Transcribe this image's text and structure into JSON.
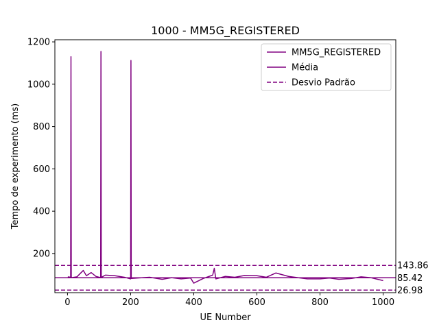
{
  "chart_data": {
    "type": "line",
    "title": "1000 - MM5G_REGISTERED",
    "xlabel": "UE Number",
    "ylabel": "Tempo de experimento (ms)",
    "xlim": [
      -40,
      1040
    ],
    "ylim": [
      15,
      1210
    ],
    "xticks": [
      0,
      200,
      400,
      600,
      800,
      1000
    ],
    "yticks": [
      200,
      400,
      600,
      800,
      1000,
      1200
    ],
    "grid": false,
    "legend_position": "top-right",
    "series_color": "#800080",
    "series": [
      {
        "name": "MM5G_REGISTERED",
        "style": "solid",
        "x": [
          1,
          10,
          11,
          12,
          13,
          30,
          50,
          60,
          75,
          90,
          105,
          106,
          107,
          108,
          120,
          150,
          180,
          200,
          201,
          202,
          203,
          230,
          260,
          300,
          330,
          360,
          390,
          400,
          430,
          460,
          465,
          470,
          500,
          530,
          560,
          600,
          630,
          660,
          700,
          730,
          760,
          800,
          830,
          860,
          900,
          930,
          960,
          1000
        ],
        "y": [
          90,
          88,
          1130,
          90,
          86,
          90,
          120,
          95,
          110,
          92,
          86,
          1155,
          92,
          88,
          98,
          95,
          88,
          80,
          1112,
          85,
          82,
          85,
          88,
          78,
          86,
          80,
          84,
          60,
          82,
          98,
          130,
          80,
          92,
          88,
          96,
          95,
          88,
          108,
          92,
          86,
          80,
          80,
          84,
          78,
          82,
          90,
          86,
          72
        ]
      },
      {
        "name": "Média",
        "style": "solid",
        "value": 85.42
      },
      {
        "name": "Desvio Padrão",
        "style": "dashed",
        "values": [
          143.86,
          26.98
        ]
      }
    ],
    "annotations": [
      "143.86",
      "85.42",
      "26.98"
    ]
  }
}
